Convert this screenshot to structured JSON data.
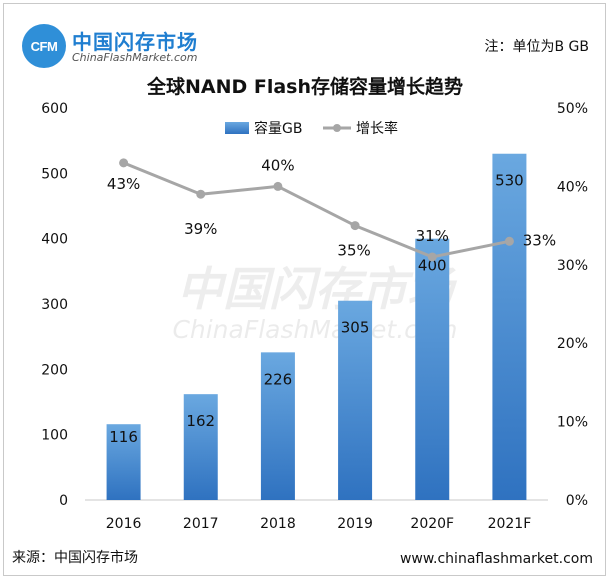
{
  "header": {
    "brand_badge": "CFM",
    "brand_cn": "中国闪存市场",
    "brand_en": "ChinaFlashMarket.com",
    "note": "注：单位为B GB"
  },
  "watermark": {
    "cn": "中国闪存市场",
    "en": "ChinaFlashMarket.com"
  },
  "footer": {
    "source": "来源：中国闪存市场",
    "url": "www.chinaflashmarket.com"
  },
  "colors": {
    "bar_top": "#6aa8e0",
    "bar_bottom": "#2f72c0",
    "line": "#a6a6a6",
    "grid": "#d9d9d9"
  },
  "chart_data": {
    "type": "bar",
    "title": "全球NAND Flash存储容量增长趋势",
    "categories": [
      "2016",
      "2017",
      "2018",
      "2019",
      "2020F",
      "2021F"
    ],
    "series": [
      {
        "name": "容量GB",
        "kind": "bar",
        "axis": "left",
        "values": [
          116,
          162,
          226,
          305,
          400,
          530
        ],
        "labels": [
          "116",
          "162",
          "226",
          "305",
          "400",
          "530"
        ]
      },
      {
        "name": "增长率",
        "kind": "line",
        "axis": "right",
        "values": [
          43,
          39,
          40,
          35,
          31,
          33
        ],
        "labels": [
          "43%",
          "39%",
          "40%",
          "35%",
          "31%",
          "33%"
        ]
      }
    ],
    "ylim_left": [
      0,
      600
    ],
    "yticks_left": [
      "0",
      "100",
      "200",
      "300",
      "400",
      "500",
      "600"
    ],
    "ylim_right": [
      0,
      50
    ],
    "yticks_right": [
      "0%",
      "10%",
      "20%",
      "30%",
      "40%",
      "50%"
    ],
    "legend_position": "top",
    "grid": false
  }
}
